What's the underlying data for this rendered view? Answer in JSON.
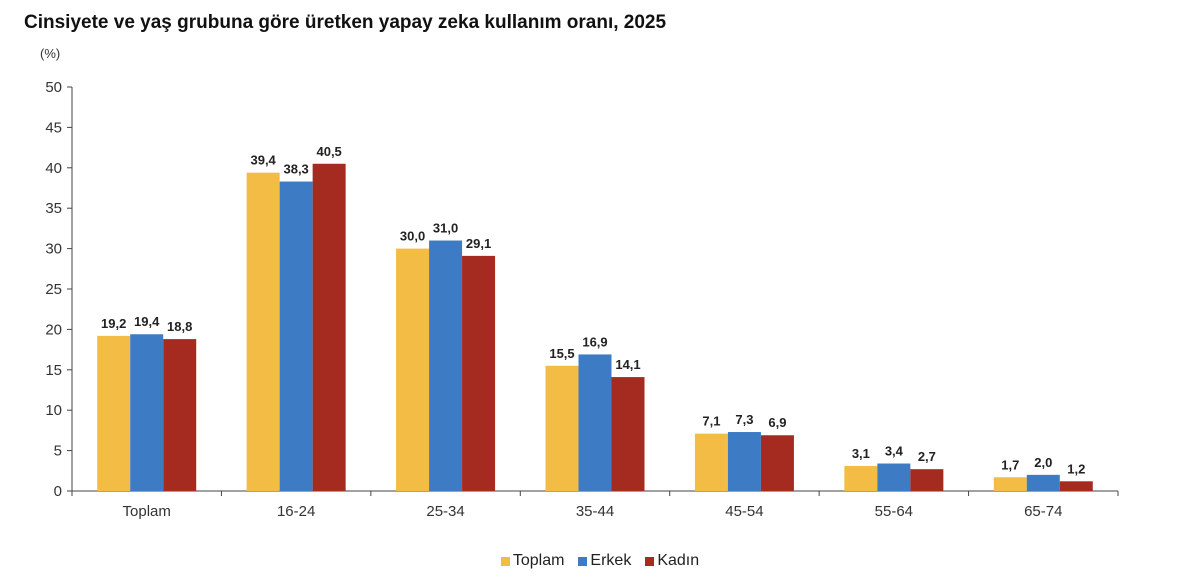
{
  "title": "Cinsiyete ve yaş grubuna göre üretken yapay zeka kullanım oranı, 2025",
  "unit_label": "(%)",
  "colors": {
    "Toplam": "#F2BC45",
    "Erkek": "#3D7CC4",
    "Kadın": "#A52A20"
  },
  "legend": [
    {
      "label": "Toplam",
      "color": "#F2BC45"
    },
    {
      "label": "Erkek",
      "color": "#3D7CC4"
    },
    {
      "label": "Kadın",
      "color": "#A52A20"
    }
  ],
  "chart_data": {
    "type": "bar",
    "title": "Cinsiyete ve yaş grubuna göre üretken yapay zeka kullanım oranı, 2025",
    "xlabel": "",
    "ylabel": "(%)",
    "ylim": [
      0,
      50
    ],
    "yticks": [
      0,
      5,
      10,
      15,
      20,
      25,
      30,
      35,
      40,
      45,
      50
    ],
    "grid": false,
    "legend_position": "bottom",
    "categories": [
      "Toplam",
      "16-24",
      "25-34",
      "35-44",
      "45-54",
      "55-64",
      "65-74"
    ],
    "series": [
      {
        "name": "Toplam",
        "color": "#F2BC45",
        "values": [
          19.2,
          39.4,
          30.0,
          15.5,
          7.1,
          3.1,
          1.7
        ],
        "labels": [
          "19,2",
          "39,4",
          "30,0",
          "15,5",
          "7,1",
          "3,1",
          "1,7"
        ]
      },
      {
        "name": "Erkek",
        "color": "#3D7CC4",
        "values": [
          19.4,
          38.3,
          31.0,
          16.9,
          7.3,
          3.4,
          2.0
        ],
        "labels": [
          "19,4",
          "38,3",
          "31,0",
          "16,9",
          "7,3",
          "3,4",
          "2,0"
        ]
      },
      {
        "name": "Kadın",
        "color": "#A52A20",
        "values": [
          18.8,
          40.5,
          29.1,
          14.1,
          6.9,
          2.7,
          1.2
        ],
        "labels": [
          "18,8",
          "40,5",
          "29,1",
          "14,1",
          "6,9",
          "2,7",
          "1,2"
        ]
      }
    ]
  }
}
